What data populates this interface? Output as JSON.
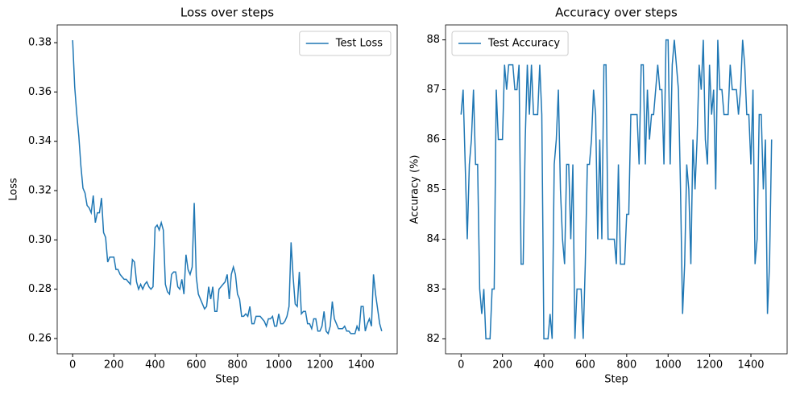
{
  "chart_data": [
    {
      "type": "line",
      "title": "Loss over steps",
      "x_label": "Step",
      "y_label": "Loss",
      "legend": "upper right",
      "grid": false,
      "xlim": [
        -75,
        1575
      ],
      "xticks": [
        0,
        200,
        400,
        600,
        800,
        1000,
        1200,
        1400
      ],
      "ylim": [
        0.2538,
        0.3872
      ],
      "yticks": [
        0.26,
        0.28,
        {
          "value": 0.3,
          "label": "0.30"
        },
        0.32,
        0.34,
        0.36,
        0.38
      ],
      "x": [
        0,
        10,
        20,
        30,
        40,
        50,
        60,
        70,
        80,
        90,
        100,
        110,
        120,
        130,
        140,
        150,
        160,
        170,
        180,
        190,
        200,
        210,
        220,
        230,
        240,
        250,
        260,
        270,
        280,
        290,
        300,
        310,
        320,
        330,
        340,
        350,
        360,
        370,
        380,
        390,
        400,
        410,
        420,
        430,
        440,
        450,
        460,
        470,
        480,
        490,
        500,
        510,
        520,
        530,
        540,
        550,
        560,
        570,
        580,
        590,
        600,
        610,
        620,
        630,
        640,
        650,
        660,
        670,
        680,
        690,
        700,
        710,
        720,
        730,
        740,
        750,
        760,
        770,
        780,
        790,
        800,
        810,
        820,
        830,
        840,
        850,
        860,
        870,
        880,
        890,
        900,
        910,
        920,
        930,
        940,
        950,
        960,
        970,
        980,
        990,
        1000,
        1010,
        1020,
        1030,
        1040,
        1050,
        1060,
        1070,
        1080,
        1090,
        1100,
        1110,
        1120,
        1130,
        1140,
        1150,
        1160,
        1170,
        1180,
        1190,
        1200,
        1210,
        1220,
        1230,
        1240,
        1250,
        1260,
        1270,
        1280,
        1290,
        1300,
        1310,
        1320,
        1330,
        1340,
        1350,
        1360,
        1370,
        1380,
        1390,
        1400,
        1410,
        1420,
        1430,
        1440,
        1450,
        1460,
        1470,
        1480,
        1490,
        1500
      ],
      "series": [
        {
          "name": "Test Loss",
          "color": "#1f77b4",
          "values": [
            0.381,
            0.362,
            0.351,
            0.342,
            0.33,
            0.321,
            0.319,
            0.314,
            0.313,
            0.311,
            0.318,
            0.307,
            0.311,
            0.311,
            0.317,
            0.303,
            0.301,
            0.291,
            0.293,
            0.293,
            0.293,
            0.288,
            0.288,
            0.286,
            0.285,
            0.284,
            0.284,
            0.283,
            0.282,
            0.292,
            0.291,
            0.283,
            0.28,
            0.282,
            0.28,
            0.282,
            0.283,
            0.281,
            0.28,
            0.281,
            0.305,
            0.306,
            0.304,
            0.307,
            0.304,
            0.282,
            0.279,
            0.278,
            0.286,
            0.287,
            0.287,
            0.281,
            0.28,
            0.284,
            0.278,
            0.294,
            0.288,
            0.286,
            0.289,
            0.315,
            0.285,
            0.278,
            0.276,
            0.274,
            0.272,
            0.273,
            0.281,
            0.276,
            0.281,
            0.271,
            0.271,
            0.28,
            0.281,
            0.282,
            0.283,
            0.286,
            0.276,
            0.286,
            0.289,
            0.286,
            0.278,
            0.276,
            0.269,
            0.269,
            0.27,
            0.269,
            0.273,
            0.266,
            0.266,
            0.269,
            0.269,
            0.269,
            0.268,
            0.267,
            0.265,
            0.268,
            0.268,
            0.269,
            0.265,
            0.265,
            0.27,
            0.266,
            0.266,
            0.267,
            0.269,
            0.273,
            0.299,
            0.285,
            0.274,
            0.273,
            0.287,
            0.27,
            0.271,
            0.271,
            0.266,
            0.266,
            0.264,
            0.268,
            0.268,
            0.263,
            0.263,
            0.265,
            0.271,
            0.263,
            0.262,
            0.265,
            0.275,
            0.268,
            0.266,
            0.264,
            0.264,
            0.264,
            0.265,
            0.263,
            0.263,
            0.262,
            0.262,
            0.262,
            0.265,
            0.263,
            0.273,
            0.273,
            0.263,
            0.266,
            0.268,
            0.265,
            0.286,
            0.278,
            0.272,
            0.266,
            0.263
          ]
        }
      ]
    },
    {
      "type": "line",
      "title": "Accuracy over steps",
      "x_label": "Step",
      "y_label": "Accuracy (%)",
      "legend": "upper left",
      "grid": false,
      "xlim": [
        -75,
        1575
      ],
      "xticks": [
        0,
        200,
        400,
        600,
        800,
        1000,
        1200,
        1400
      ],
      "ylim": [
        81.7,
        88.3
      ],
      "yticks": [
        82,
        83,
        84,
        85,
        86,
        87,
        88
      ],
      "x": [
        0,
        10,
        20,
        30,
        40,
        50,
        60,
        70,
        80,
        90,
        100,
        110,
        120,
        130,
        140,
        150,
        160,
        170,
        180,
        190,
        200,
        210,
        220,
        230,
        240,
        250,
        260,
        270,
        280,
        290,
        300,
        310,
        320,
        330,
        340,
        350,
        360,
        370,
        380,
        390,
        400,
        410,
        420,
        430,
        440,
        450,
        460,
        470,
        480,
        490,
        500,
        510,
        520,
        530,
        540,
        550,
        560,
        570,
        580,
        590,
        600,
        610,
        620,
        630,
        640,
        650,
        660,
        670,
        680,
        690,
        700,
        710,
        720,
        730,
        740,
        750,
        760,
        770,
        780,
        790,
        800,
        810,
        820,
        830,
        840,
        850,
        860,
        870,
        880,
        890,
        900,
        910,
        920,
        930,
        940,
        950,
        960,
        970,
        980,
        990,
        1000,
        1010,
        1020,
        1030,
        1040,
        1050,
        1060,
        1070,
        1080,
        1090,
        1100,
        1110,
        1120,
        1130,
        1140,
        1150,
        1160,
        1170,
        1180,
        1190,
        1200,
        1210,
        1220,
        1230,
        1240,
        1250,
        1260,
        1270,
        1280,
        1290,
        1300,
        1310,
        1320,
        1330,
        1340,
        1350,
        1360,
        1370,
        1380,
        1390,
        1400,
        1410,
        1420,
        1430,
        1440,
        1450,
        1460,
        1470,
        1480,
        1490,
        1500
      ],
      "series": [
        {
          "name": "Test Accuracy",
          "color": "#1f77b4",
          "values": [
            86.5,
            87,
            85.5,
            84,
            85.5,
            86,
            87,
            85.5,
            85.5,
            83,
            82.5,
            83,
            82,
            82,
            82,
            83,
            83,
            87,
            86,
            86,
            86,
            87.5,
            87,
            87.5,
            87.5,
            87.5,
            87,
            87,
            87.5,
            83.5,
            83.5,
            86,
            87.5,
            86.5,
            87.5,
            86.5,
            86.5,
            86.5,
            87.5,
            86.5,
            82,
            82,
            82,
            82.5,
            82,
            85.5,
            86,
            87,
            85,
            84,
            83.5,
            85.5,
            85.5,
            84,
            85.5,
            82,
            83,
            83,
            83,
            82,
            83.5,
            85.5,
            85.5,
            86,
            87,
            86.5,
            84,
            86,
            84,
            87.5,
            87.5,
            84,
            84,
            84,
            84,
            83.5,
            85.5,
            83.5,
            83.5,
            83.5,
            84.5,
            84.5,
            86.5,
            86.5,
            86.5,
            86.5,
            85.5,
            87.5,
            87.5,
            85.5,
            87,
            86,
            86.5,
            86.5,
            87,
            87.5,
            87,
            87,
            85.5,
            88,
            88,
            85.5,
            87.5,
            88,
            87.5,
            87,
            85,
            82.5,
            83.5,
            85.5,
            85,
            83.5,
            86,
            85,
            86,
            87.5,
            87,
            88,
            86,
            85.5,
            87.5,
            86.5,
            87,
            85,
            88,
            87,
            87,
            86.5,
            86.5,
            86.5,
            87.5,
            87,
            87,
            87,
            86.5,
            87,
            88,
            87.5,
            86.5,
            86.5,
            85.5,
            87,
            83.5,
            84,
            86.5,
            86.5,
            85,
            86,
            82.5,
            83.5,
            86
          ]
        }
      ]
    }
  ]
}
